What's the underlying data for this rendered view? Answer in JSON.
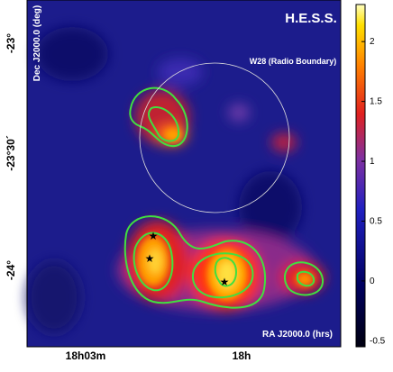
{
  "chart_data": {
    "type": "heatmap",
    "title": "H.E.S.S.",
    "annotation": "W28 (Radio Boundary)",
    "xlabel": "RA J2000.0 (hrs)",
    "ylabel": "Dec J2000.0 (deg)",
    "x_tick_labels": [
      "18h03m",
      "18h"
    ],
    "y_tick_labels": [
      "-23°",
      "-23°30´",
      "-24°"
    ],
    "colorbar_lim": [
      -0.55,
      2.31
    ],
    "colorbar_ticks": [
      -0.5,
      0,
      0.5,
      1,
      1.5,
      2
    ]
  }
}
